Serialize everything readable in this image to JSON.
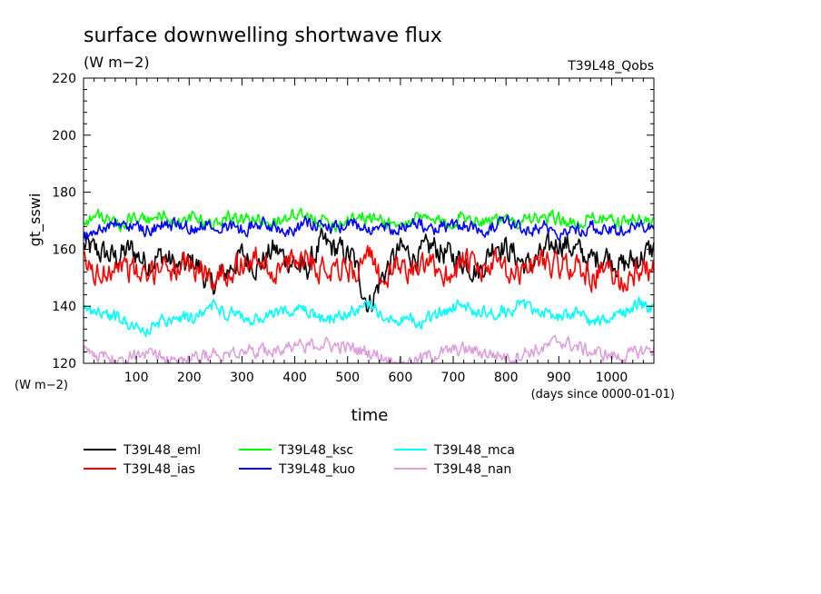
{
  "chart_data": {
    "type": "line",
    "title": "surface downwelling shortwave flux",
    "units_label": "(W m−2)",
    "experiment": "T39L48_Qobs",
    "ylabel": "gt_sswi",
    "y_units_label": "(W m−2)",
    "xlabel": "time",
    "x_units_label": "(days since 0000-01-01)",
    "xlim": [
      0,
      1080
    ],
    "ylim": [
      120,
      220
    ],
    "x_ticks": [
      100,
      200,
      300,
      400,
      500,
      600,
      700,
      800,
      900,
      1000
    ],
    "y_ticks": [
      120,
      140,
      160,
      180,
      200,
      220
    ],
    "x": [
      0,
      30,
      60,
      90,
      120,
      150,
      180,
      210,
      240,
      270,
      300,
      330,
      360,
      390,
      420,
      450,
      480,
      510,
      540,
      570,
      600,
      630,
      660,
      690,
      720,
      750,
      780,
      810,
      840,
      870,
      900,
      930,
      960,
      990,
      1020,
      1050,
      1080
    ],
    "series": [
      {
        "name": "T39L48_eml",
        "color": "#000000",
        "values": [
          161,
          159,
          157,
          160,
          155,
          158,
          153,
          156,
          147,
          152,
          158,
          154,
          160,
          156,
          152,
          162,
          160,
          157,
          140,
          152,
          160,
          157,
          161,
          158,
          156,
          152,
          163,
          159,
          154,
          158,
          163,
          160,
          156,
          158,
          154,
          157,
          160
        ]
      },
      {
        "name": "T39L48_ias",
        "color": "#ff0000",
        "values": [
          155,
          150,
          156,
          153,
          149,
          156,
          152,
          154,
          150,
          152,
          155,
          157,
          152,
          155,
          158,
          153,
          155,
          152,
          157,
          149,
          155,
          152,
          154,
          151,
          156,
          152,
          155,
          150,
          154,
          157,
          153,
          155,
          150,
          153,
          148,
          153,
          152
        ]
      },
      {
        "name": "T39L48_ksc",
        "color": "#00ff00",
        "values": [
          170,
          172,
          168,
          171,
          170,
          172,
          169,
          171,
          168,
          172,
          170,
          171,
          169,
          172,
          171,
          170,
          169,
          172,
          171,
          170,
          168,
          171,
          170,
          169,
          172,
          170,
          171,
          169,
          172,
          170,
          171,
          168,
          172,
          170,
          169,
          171,
          169
        ]
      },
      {
        "name": "T39L48_kuo",
        "color": "#0000ff",
        "values": [
          164,
          167,
          169,
          168,
          167,
          168,
          169,
          167,
          170,
          168,
          167,
          169,
          168,
          167,
          169,
          168,
          167,
          169,
          168,
          167,
          168,
          169,
          167,
          168,
          169,
          167,
          168,
          169,
          167,
          168,
          166,
          167,
          168,
          166,
          167,
          168,
          167
        ]
      },
      {
        "name": "T39L48_mca",
        "color": "#00ffff",
        "values": [
          139,
          138,
          136,
          134,
          131,
          135,
          137,
          135,
          141,
          138,
          136,
          135,
          137,
          139,
          138,
          135,
          136,
          138,
          140,
          137,
          136,
          134,
          136,
          139,
          141,
          138,
          137,
          139,
          140,
          138,
          136,
          138,
          135,
          134,
          138,
          141,
          139
        ]
      },
      {
        "name": "T39L48_nan",
        "color": "#dda0dd",
        "values": [
          125,
          123,
          121,
          122,
          124,
          123,
          121,
          122,
          123,
          124,
          125,
          124,
          125,
          126,
          126,
          127,
          126,
          125,
          124,
          122,
          120,
          121,
          123,
          124,
          125,
          124,
          123,
          122,
          124,
          125,
          128,
          126,
          124,
          123,
          122,
          124,
          125
        ]
      }
    ],
    "legend_position": "bottom",
    "grid": false
  }
}
